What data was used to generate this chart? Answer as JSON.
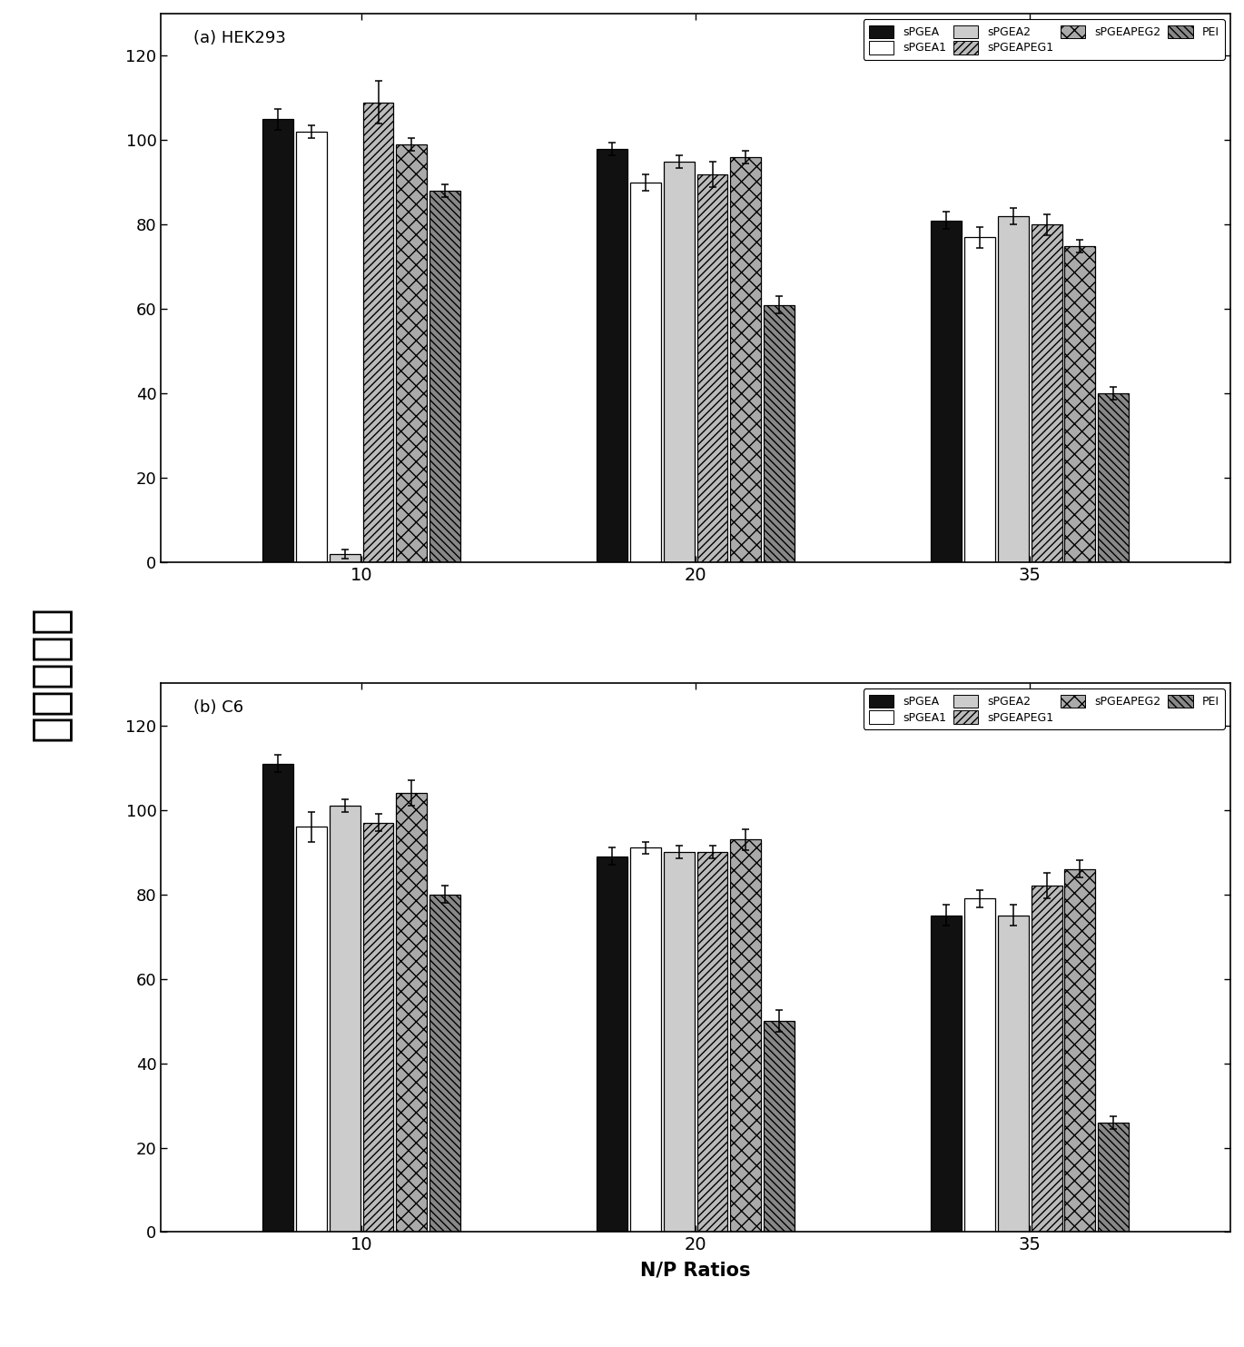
{
  "title_a": "(a) HEK293",
  "title_b": "(b) C6",
  "xlabel": "N/P Ratios",
  "ylabel": "细胞存活率",
  "groups": [
    "10",
    "20",
    "35"
  ],
  "keys": [
    "PGEA",
    "sPGEA1",
    "sPGEA2",
    "sPGEAPEG1",
    "sPGEAPEG2",
    "PEI"
  ],
  "labels": [
    "sPGEA",
    "sPGEA1",
    "sPGEA2",
    "sPGEAPEG1",
    "sPGEAPEG2",
    "PEI"
  ],
  "data_a": {
    "PGEA": [
      105,
      98,
      81
    ],
    "sPGEA1": [
      102,
      90,
      77
    ],
    "sPGEA2": [
      2,
      95,
      82
    ],
    "sPGEAPEG1": [
      109,
      92,
      80
    ],
    "sPGEAPEG2": [
      99,
      96,
      75
    ],
    "PEI": [
      88,
      61,
      40
    ]
  },
  "err_a": {
    "PGEA": [
      2.5,
      1.5,
      2.0
    ],
    "sPGEA1": [
      1.5,
      2.0,
      2.5
    ],
    "sPGEA2": [
      1.0,
      1.5,
      2.0
    ],
    "sPGEAPEG1": [
      5.0,
      3.0,
      2.5
    ],
    "sPGEAPEG2": [
      1.5,
      1.5,
      1.5
    ],
    "PEI": [
      1.5,
      2.0,
      1.5
    ]
  },
  "data_b": {
    "PGEA": [
      111,
      89,
      75
    ],
    "sPGEA1": [
      96,
      91,
      79
    ],
    "sPGEA2": [
      101,
      90,
      75
    ],
    "sPGEAPEG1": [
      97,
      90,
      82
    ],
    "sPGEAPEG2": [
      104,
      93,
      86
    ],
    "PEI": [
      80,
      50,
      26
    ]
  },
  "err_b": {
    "PGEA": [
      2.0,
      2.0,
      2.5
    ],
    "sPGEA1": [
      3.5,
      1.5,
      2.0
    ],
    "sPGEA2": [
      1.5,
      1.5,
      2.5
    ],
    "sPGEAPEG1": [
      2.0,
      1.5,
      3.0
    ],
    "sPGEAPEG2": [
      3.0,
      2.5,
      2.0
    ],
    "PEI": [
      2.0,
      2.5,
      1.5
    ]
  },
  "ylim": [
    0,
    130
  ],
  "yticks": [
    0,
    20,
    40,
    60,
    80,
    100,
    120
  ],
  "bar_width": 0.13,
  "group_centers": [
    1.0,
    2.3,
    3.6
  ],
  "figsize": [
    13.7,
    14.83
  ],
  "dpi": 100
}
